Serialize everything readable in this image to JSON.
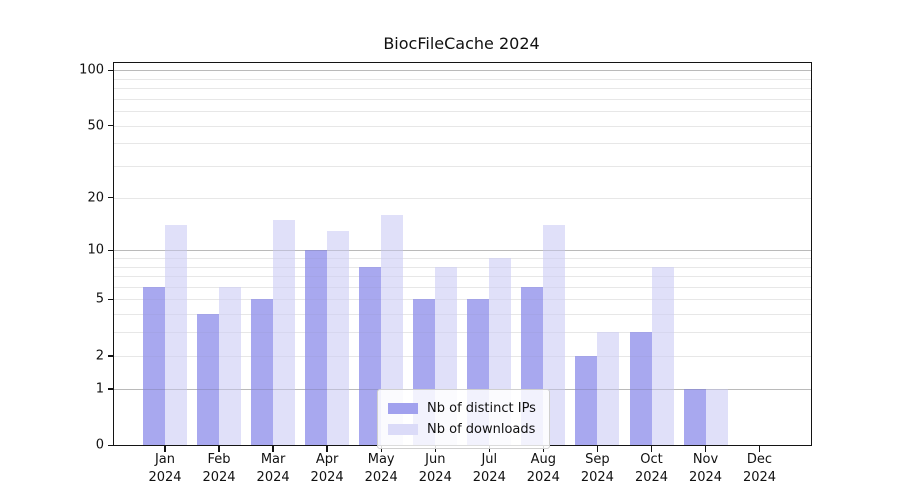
{
  "chart_data": {
    "type": "bar",
    "title": "BiocFileCache 2024",
    "year_label": "2024",
    "categories": [
      "Jan",
      "Feb",
      "Mar",
      "Apr",
      "May",
      "Jun",
      "Jul",
      "Aug",
      "Sep",
      "Oct",
      "Nov",
      "Dec"
    ],
    "series": [
      {
        "name": "Nb of distinct IPs",
        "key": "distinct-ips",
        "color": "#a1a1ee",
        "values": [
          6,
          4,
          5,
          10,
          8,
          5,
          5,
          6,
          2,
          3,
          1,
          0
        ]
      },
      {
        "name": "Nb of downloads",
        "key": "downloads",
        "color": "#dbdbf8",
        "values": [
          14,
          6,
          15,
          13,
          16,
          8,
          9,
          14,
          3,
          8,
          1,
          0
        ]
      }
    ],
    "xlabel": "",
    "ylabel": "",
    "y_axis": {
      "scale": "log1p",
      "ticks": [
        0,
        1,
        2,
        5,
        10,
        20,
        50,
        100
      ],
      "range": [
        0,
        110
      ]
    },
    "grid": {
      "major": [
        1,
        10,
        100
      ],
      "minor": [
        2,
        3,
        4,
        5,
        6,
        7,
        8,
        9,
        20,
        30,
        40,
        50,
        60,
        70,
        80,
        90
      ],
      "orientation": "horizontal"
    },
    "legend": {
      "position": "lower-center"
    },
    "colors": {
      "background": "#ffffff",
      "spine": "#141414",
      "major_grid": "#d2d2d2",
      "minor_grid": "#efefef"
    }
  }
}
